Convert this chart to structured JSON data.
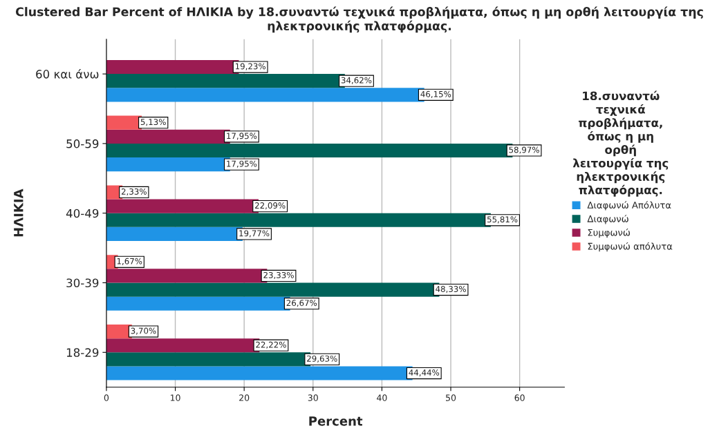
{
  "chart_data": {
    "type": "bar",
    "orientation": "horizontal",
    "title": "Clustered Bar Percent of ΗΛΙΚΙΑ by 18.συναντώ τεχνικά προβλήματα, όπως η μη ορθή λειτουργία της ηλεκτρονικής πλατφόρμας.",
    "xlabel": "Percent",
    "ylabel": "ΗΛΙΚΙΑ",
    "legend_title": "18.συναντώ\nτεχνικά\nπροβλήματα,\nόπως η μη\nορθή\nλειτουργία της\nηλεκτρονικής\nπλατφόρμας.",
    "categories": [
      "60 και άνω",
      "50-59",
      "40-49",
      "30-39",
      "18-29"
    ],
    "series": [
      {
        "name": "Διαφωνώ Απόλυτα",
        "color": "#1f94e6",
        "values": [
          46.15,
          17.95,
          19.77,
          26.67,
          44.44
        ],
        "value_labels": [
          "46,15%",
          "17,95%",
          "19,77%",
          "26,67%",
          "44,44%"
        ]
      },
      {
        "name": "Διαφωνώ",
        "color": "#00635a",
        "values": [
          34.62,
          58.97,
          55.81,
          48.33,
          29.63
        ],
        "value_labels": [
          "34,62%",
          "58,97%",
          "55,81%",
          "48,33%",
          "29,63%"
        ]
      },
      {
        "name": "Συμφωνώ",
        "color": "#9b1c52",
        "values": [
          19.23,
          17.95,
          22.09,
          23.33,
          22.22
        ],
        "value_labels": [
          "19,23%",
          "17,95%",
          "22,09%",
          "23,33%",
          "22,22%"
        ]
      },
      {
        "name": "Συμφωνώ απόλυτα",
        "color": "#f4565b",
        "values": [
          null,
          5.13,
          2.33,
          1.67,
          3.7
        ],
        "value_labels": [
          null,
          "5,13%",
          "2,33%",
          "1,67%",
          "3,70%"
        ]
      }
    ],
    "xlim": [
      0,
      66.5
    ],
    "xticks": [
      0,
      10,
      20,
      30,
      40,
      50,
      60
    ],
    "grid": "x",
    "legend": "right"
  }
}
